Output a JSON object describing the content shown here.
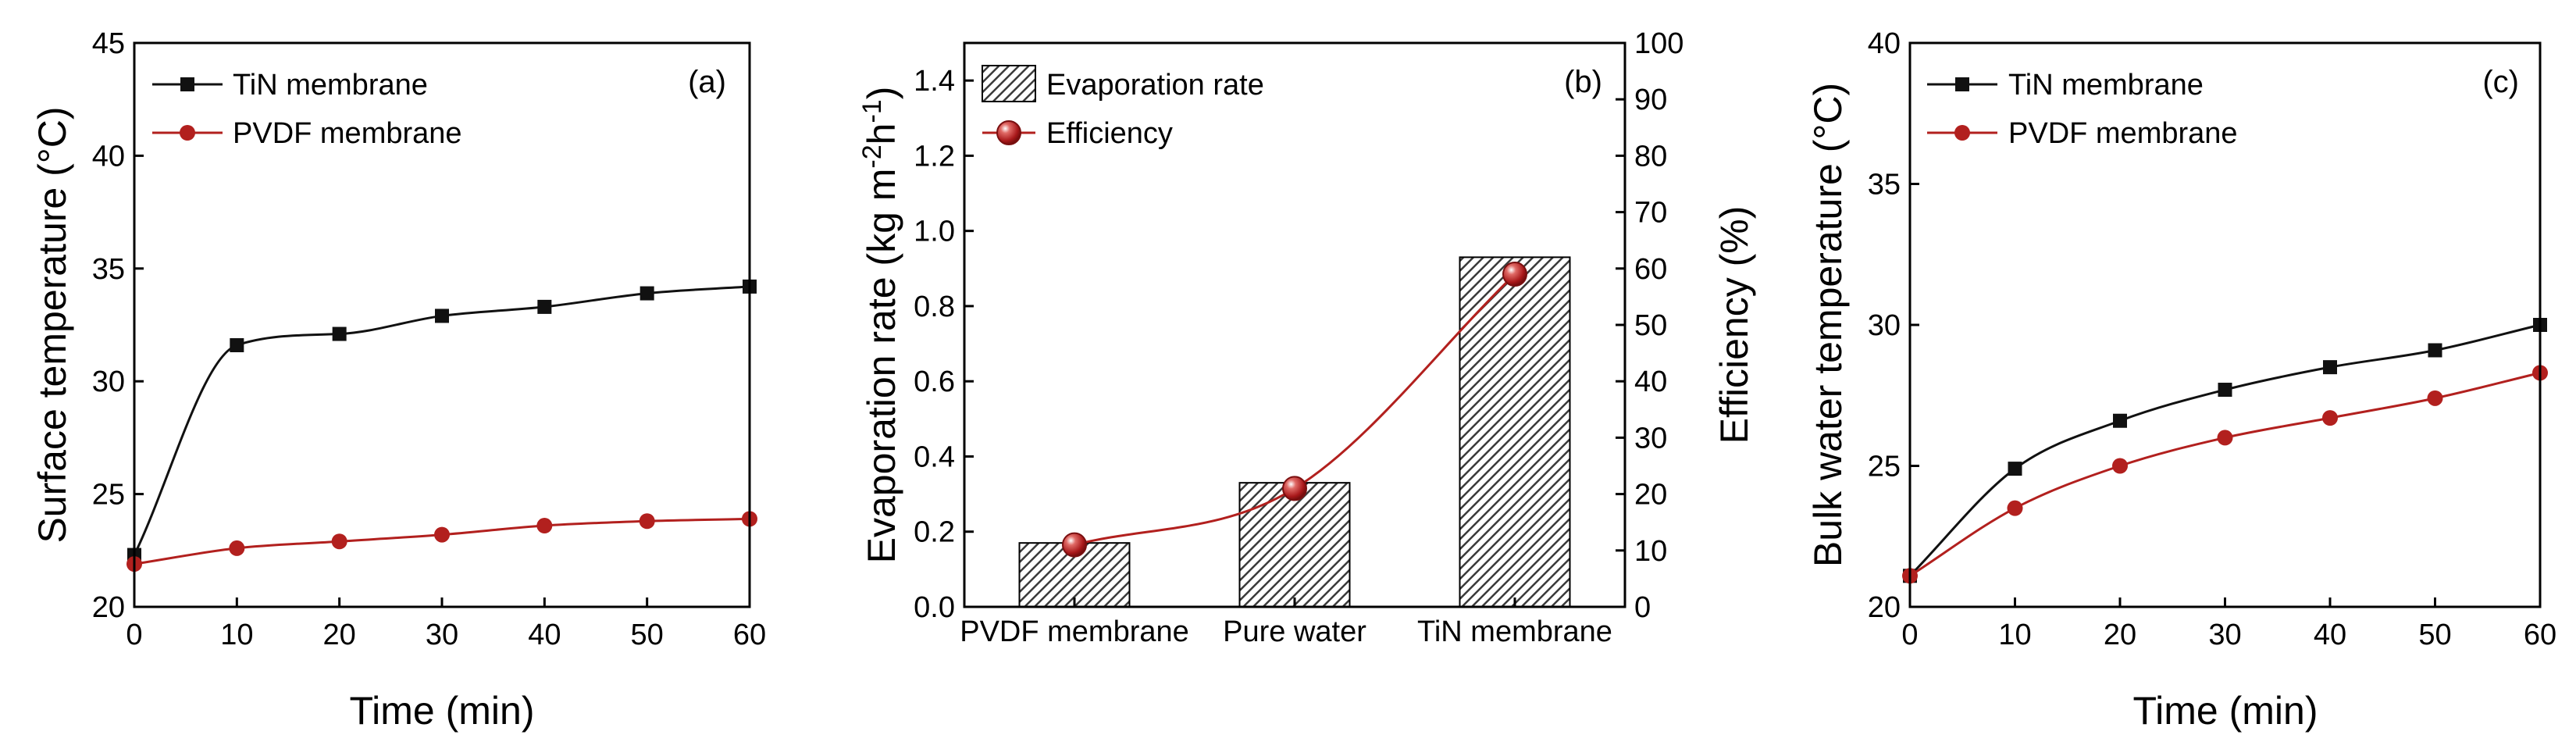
{
  "colors": {
    "series_black": "#111111",
    "series_red": "#b2201e",
    "axis": "#000000",
    "bar_hatch": "#3a3a3a"
  },
  "chart_data": [
    {
      "id": "a",
      "type": "line",
      "panel_label": "(a)",
      "title": "",
      "xlabel": "Time (min)",
      "ylabel": "Surface temperature (°C)",
      "xlim": [
        0,
        60
      ],
      "ylim": [
        20,
        45
      ],
      "xticks": [
        0,
        10,
        20,
        30,
        40,
        50,
        60
      ],
      "yticks": [
        20,
        25,
        30,
        35,
        40,
        45
      ],
      "legend_position": "top-left",
      "series": [
        {
          "name": "TiN membrane",
          "marker": "square",
          "color": "#111111",
          "x": [
            0,
            10,
            20,
            30,
            40,
            50,
            60
          ],
          "y": [
            22.3,
            31.6,
            32.1,
            32.9,
            33.3,
            33.9,
            34.2
          ]
        },
        {
          "name": "PVDF membrane",
          "marker": "circle",
          "color": "#b2201e",
          "x": [
            0,
            10,
            20,
            30,
            40,
            50,
            60
          ],
          "y": [
            21.9,
            22.6,
            22.9,
            23.2,
            23.6,
            23.8,
            23.9
          ]
        }
      ]
    },
    {
      "id": "b",
      "type": "bar",
      "panel_label": "(b)",
      "title": "",
      "xlabel": "",
      "ylabel": "Evaporation rate (kg m-2h-1)",
      "ylabel_parts": {
        "pre": "Evaporation rate (kg m",
        "sup1": "-2",
        "mid": "h",
        "sup2": "-1",
        "post": ")"
      },
      "y2label": "Efficiency (%)",
      "categories": [
        "PVDF membrane",
        "Pure water",
        "TiN membrane"
      ],
      "ylim": [
        0,
        1.5
      ],
      "yticks": [
        0.0,
        0.2,
        0.4,
        0.6,
        0.8,
        1.0,
        1.2,
        1.4
      ],
      "y2lim": [
        0,
        100
      ],
      "y2ticks": [
        0,
        10,
        20,
        30,
        40,
        50,
        60,
        70,
        80,
        90,
        100
      ],
      "legend_position": "top-left",
      "series": [
        {
          "name": "Evaporation rate",
          "kind": "bar",
          "axis": "left",
          "values": [
            0.17,
            0.33,
            0.93
          ]
        },
        {
          "name": "Efficiency",
          "kind": "line",
          "axis": "right",
          "color": "#b2201e",
          "values": [
            11,
            21,
            59
          ]
        }
      ]
    },
    {
      "id": "c",
      "type": "line",
      "panel_label": "(c)",
      "title": "",
      "xlabel": "Time (min)",
      "ylabel": "Bulk water temperature (°C)",
      "xlim": [
        0,
        60
      ],
      "ylim": [
        20,
        40
      ],
      "xticks": [
        0,
        10,
        20,
        30,
        40,
        50,
        60
      ],
      "yticks": [
        20,
        25,
        30,
        35,
        40
      ],
      "legend_position": "top-left",
      "series": [
        {
          "name": "TiN membrane",
          "marker": "square",
          "color": "#111111",
          "x": [
            0,
            10,
            20,
            30,
            40,
            50,
            60
          ],
          "y": [
            21.1,
            24.9,
            26.6,
            27.7,
            28.5,
            29.1,
            30.0
          ]
        },
        {
          "name": "PVDF membrane",
          "marker": "circle",
          "color": "#b2201e",
          "x": [
            0,
            10,
            20,
            30,
            40,
            50,
            60
          ],
          "y": [
            21.1,
            23.5,
            25.0,
            26.0,
            26.7,
            27.4,
            28.3
          ]
        }
      ]
    }
  ]
}
